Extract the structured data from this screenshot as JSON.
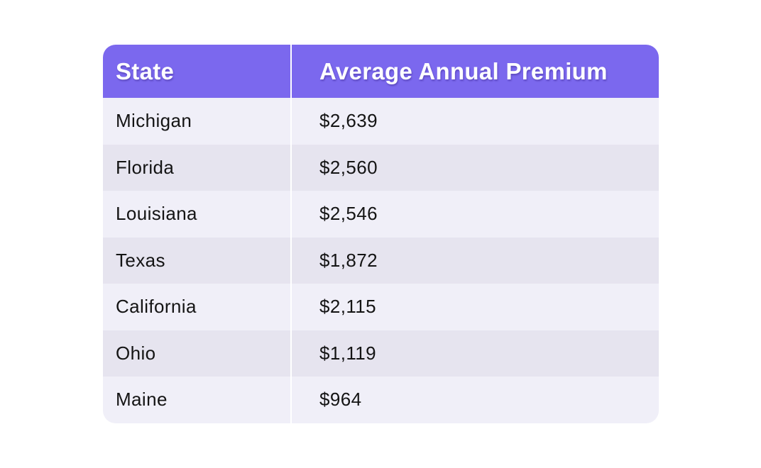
{
  "table": {
    "headers": [
      "State",
      "Average Annual Premium"
    ],
    "rows": [
      {
        "state": "Michigan",
        "premium": "$2,639"
      },
      {
        "state": "Florida",
        "premium": "$2,560"
      },
      {
        "state": "Louisiana",
        "premium": "$2,546"
      },
      {
        "state": "Texas",
        "premium": "$1,872"
      },
      {
        "state": "California",
        "premium": "$2,115"
      },
      {
        "state": "Ohio",
        "premium": "$1,119"
      },
      {
        "state": "Maine",
        "premium": "$964"
      }
    ],
    "colors": {
      "header_bg": "#7b68ee",
      "row_odd_bg": "#f0eff8",
      "row_even_bg": "#e6e4ef"
    }
  }
}
